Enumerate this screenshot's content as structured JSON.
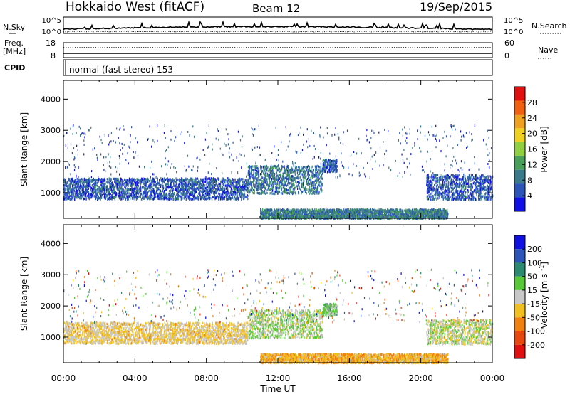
{
  "header": {
    "station": "Hokkaido West (fitACF)",
    "beam": "Beam 12",
    "date": "19/Sep/2015"
  },
  "status_panels": {
    "nsky_label": "N.Sky",
    "nsky_ticks": [
      "10^5",
      "10^0"
    ],
    "nsearch_label": "N.Search",
    "nsearch_ticks": [
      "10^5",
      "10^0"
    ],
    "freq_label": "Freq.",
    "freq_unit": "[MHz]",
    "freq_ticks": [
      "18",
      "8"
    ],
    "nave_label": "Nave",
    "nave_ticks": [
      "60",
      "0"
    ],
    "cpid_label": "CPID",
    "cpid_value": "normal (fast stereo) 153"
  },
  "x_axis": {
    "label": "Time UT",
    "ticks": [
      "00:00",
      "04:00",
      "08:00",
      "12:00",
      "16:00",
      "20:00",
      "00:00"
    ],
    "range_hours": [
      0,
      24
    ]
  },
  "chart_data": [
    {
      "type": "heatmap",
      "name": "power",
      "ylabel": "Slant Range [km]",
      "yticks": [
        "1000",
        "2000",
        "3000",
        "4000"
      ],
      "ylim": [
        180,
        4600
      ],
      "xlim": [
        0,
        24
      ],
      "colorbar": {
        "label": "Power [dB]",
        "ticks": [
          "4",
          "8",
          "12",
          "16",
          "20",
          "24",
          "28"
        ],
        "range": [
          0,
          32
        ],
        "colors": [
          "#1010e6",
          "#2b55b8",
          "#3a7a8a",
          "#4aa05a",
          "#8fcf40",
          "#f0d020",
          "#f0a020",
          "#f06010",
          "#e01010"
        ]
      },
      "regions": [
        {
          "t": [
            0.0,
            10.3
          ],
          "range_km": [
            820,
            1500
          ],
          "mean_db": 6
        },
        {
          "t": [
            10.3,
            14.5
          ],
          "range_km": [
            1000,
            1900
          ],
          "mean_db": 8
        },
        {
          "t": [
            14.5,
            15.3
          ],
          "range_km": [
            1700,
            2100
          ],
          "mean_db": 7
        },
        {
          "t": [
            20.3,
            24.0
          ],
          "range_km": [
            800,
            1600
          ],
          "mean_db": 6
        },
        {
          "t": [
            11.0,
            21.5
          ],
          "range_km": [
            200,
            500
          ],
          "mean_db": 9
        }
      ]
    },
    {
      "type": "heatmap",
      "name": "velocity",
      "ylabel": "Slant Range [km]",
      "yticks": [
        "1000",
        "2000",
        "3000",
        "4000"
      ],
      "ylim": [
        180,
        4600
      ],
      "xlim": [
        0,
        24
      ],
      "colorbar": {
        "label": "Velocity [m s^-1]",
        "ticks": [
          "200",
          "100",
          "50",
          "15",
          "-15",
          "-50",
          "-100",
          "-200"
        ],
        "colors": [
          "#1010e0",
          "#2b55b8",
          "#2c8a70",
          "#58c838",
          "#c8c8c8",
          "#f0c020",
          "#f08010",
          "#e84810",
          "#e01010"
        ]
      },
      "regions": [
        {
          "t": [
            0.0,
            10.3
          ],
          "range_km": [
            820,
            1500
          ],
          "mean_ms": -20
        },
        {
          "t": [
            10.3,
            14.5
          ],
          "range_km": [
            1000,
            1900
          ],
          "mean_ms": 10
        },
        {
          "t": [
            14.5,
            15.3
          ],
          "range_km": [
            1700,
            2100
          ],
          "mean_ms": 20
        },
        {
          "t": [
            20.3,
            24.0
          ],
          "range_km": [
            800,
            1600
          ],
          "mean_ms": 0
        },
        {
          "t": [
            11.0,
            21.5
          ],
          "range_km": [
            200,
            500
          ],
          "mean_ms": -40
        }
      ]
    }
  ]
}
